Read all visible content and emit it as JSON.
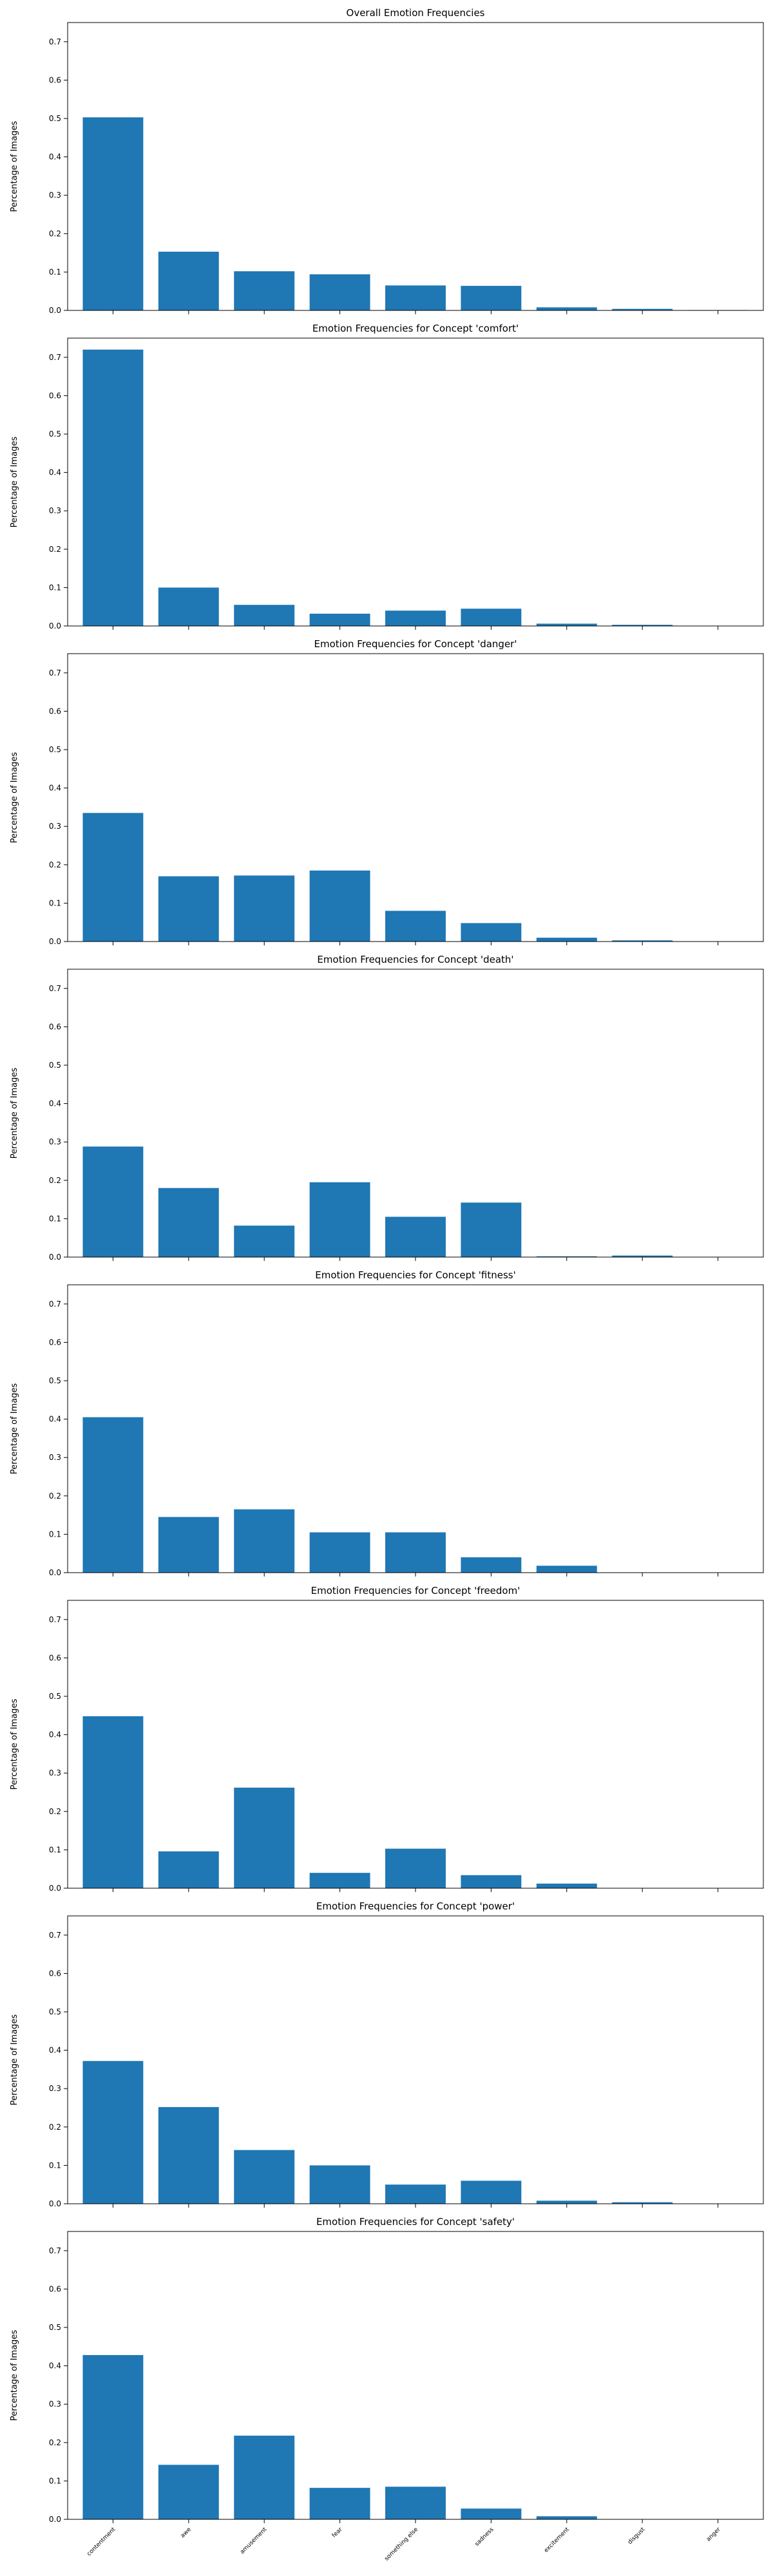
{
  "chart_data": [
    {
      "type": "bar",
      "title": "Overall Emotion Frequencies",
      "xlabel": "",
      "ylabel": "Percentage of Images",
      "ylim": [
        0,
        0.75
      ],
      "yticks": [
        0.0,
        0.1,
        0.2,
        0.3,
        0.4,
        0.5,
        0.6,
        0.7
      ],
      "categories": [
        "contentment",
        "awe",
        "amusement",
        "fear",
        "something else",
        "sadness",
        "excitement",
        "disgust",
        "anger"
      ],
      "values": [
        0.503,
        0.153,
        0.102,
        0.094,
        0.065,
        0.064,
        0.008,
        0.004,
        0.001
      ],
      "show_xtick_labels": false,
      "bar_color": "#1f77b4"
    },
    {
      "type": "bar",
      "title": "Emotion Frequencies for Concept 'comfort'",
      "xlabel": "",
      "ylabel": "Percentage of Images",
      "ylim": [
        0,
        0.75
      ],
      "yticks": [
        0.0,
        0.1,
        0.2,
        0.3,
        0.4,
        0.5,
        0.6,
        0.7
      ],
      "categories": [
        "contentment",
        "awe",
        "amusement",
        "fear",
        "something else",
        "sadness",
        "excitement",
        "disgust",
        "anger"
      ],
      "values": [
        0.72,
        0.1,
        0.055,
        0.032,
        0.04,
        0.045,
        0.006,
        0.003,
        0.0
      ],
      "show_xtick_labels": false,
      "bar_color": "#1f77b4"
    },
    {
      "type": "bar",
      "title": "Emotion Frequencies for Concept 'danger'",
      "xlabel": "",
      "ylabel": "Percentage of Images",
      "ylim": [
        0,
        0.75
      ],
      "yticks": [
        0.0,
        0.1,
        0.2,
        0.3,
        0.4,
        0.5,
        0.6,
        0.7
      ],
      "categories": [
        "contentment",
        "awe",
        "amusement",
        "fear",
        "something else",
        "sadness",
        "excitement",
        "disgust",
        "anger"
      ],
      "values": [
        0.335,
        0.17,
        0.172,
        0.185,
        0.08,
        0.048,
        0.01,
        0.003,
        0.0
      ],
      "show_xtick_labels": false,
      "bar_color": "#1f77b4"
    },
    {
      "type": "bar",
      "title": "Emotion Frequencies for Concept 'death'",
      "xlabel": "",
      "ylabel": "Percentage of Images",
      "ylim": [
        0,
        0.75
      ],
      "yticks": [
        0.0,
        0.1,
        0.2,
        0.3,
        0.4,
        0.5,
        0.6,
        0.7
      ],
      "categories": [
        "contentment",
        "awe",
        "amusement",
        "fear",
        "something else",
        "sadness",
        "excitement",
        "disgust",
        "anger"
      ],
      "values": [
        0.288,
        0.18,
        0.082,
        0.195,
        0.105,
        0.142,
        0.002,
        0.004,
        0.0
      ],
      "show_xtick_labels": false,
      "bar_color": "#1f77b4"
    },
    {
      "type": "bar",
      "title": "Emotion Frequencies for Concept 'fitness'",
      "xlabel": "",
      "ylabel": "Percentage of Images",
      "ylim": [
        0,
        0.75
      ],
      "yticks": [
        0.0,
        0.1,
        0.2,
        0.3,
        0.4,
        0.5,
        0.6,
        0.7
      ],
      "categories": [
        "contentment",
        "awe",
        "amusement",
        "fear",
        "something else",
        "sadness",
        "excitement",
        "disgust",
        "anger"
      ],
      "values": [
        0.405,
        0.145,
        0.165,
        0.105,
        0.105,
        0.04,
        0.018,
        0.0,
        0.0
      ],
      "show_xtick_labels": false,
      "bar_color": "#1f77b4"
    },
    {
      "type": "bar",
      "title": "Emotion Frequencies for Concept 'freedom'",
      "xlabel": "",
      "ylabel": "Percentage of Images",
      "ylim": [
        0,
        0.75
      ],
      "yticks": [
        0.0,
        0.1,
        0.2,
        0.3,
        0.4,
        0.5,
        0.6,
        0.7
      ],
      "categories": [
        "contentment",
        "awe",
        "amusement",
        "fear",
        "something else",
        "sadness",
        "excitement",
        "disgust",
        "anger"
      ],
      "values": [
        0.448,
        0.096,
        0.262,
        0.04,
        0.103,
        0.034,
        0.012,
        0.0,
        0.0
      ],
      "show_xtick_labels": false,
      "bar_color": "#1f77b4"
    },
    {
      "type": "bar",
      "title": "Emotion Frequencies for Concept 'power'",
      "xlabel": "",
      "ylabel": "Percentage of Images",
      "ylim": [
        0,
        0.75
      ],
      "yticks": [
        0.0,
        0.1,
        0.2,
        0.3,
        0.4,
        0.5,
        0.6,
        0.7
      ],
      "categories": [
        "contentment",
        "awe",
        "amusement",
        "fear",
        "something else",
        "sadness",
        "excitement",
        "disgust",
        "anger"
      ],
      "values": [
        0.372,
        0.252,
        0.14,
        0.1,
        0.05,
        0.06,
        0.008,
        0.004,
        0.0
      ],
      "show_xtick_labels": false,
      "bar_color": "#1f77b4"
    },
    {
      "type": "bar",
      "title": "Emotion Frequencies for Concept 'safety'",
      "xlabel": "",
      "ylabel": "Percentage of Images",
      "ylim": [
        0,
        0.75
      ],
      "yticks": [
        0.0,
        0.1,
        0.2,
        0.3,
        0.4,
        0.5,
        0.6,
        0.7
      ],
      "categories": [
        "contentment",
        "awe",
        "amusement",
        "fear",
        "something else",
        "sadness",
        "excitement",
        "disgust",
        "anger"
      ],
      "values": [
        0.428,
        0.142,
        0.218,
        0.082,
        0.085,
        0.028,
        0.008,
        0.0,
        0.0
      ],
      "show_xtick_labels": true,
      "bar_color": "#1f77b4"
    }
  ]
}
